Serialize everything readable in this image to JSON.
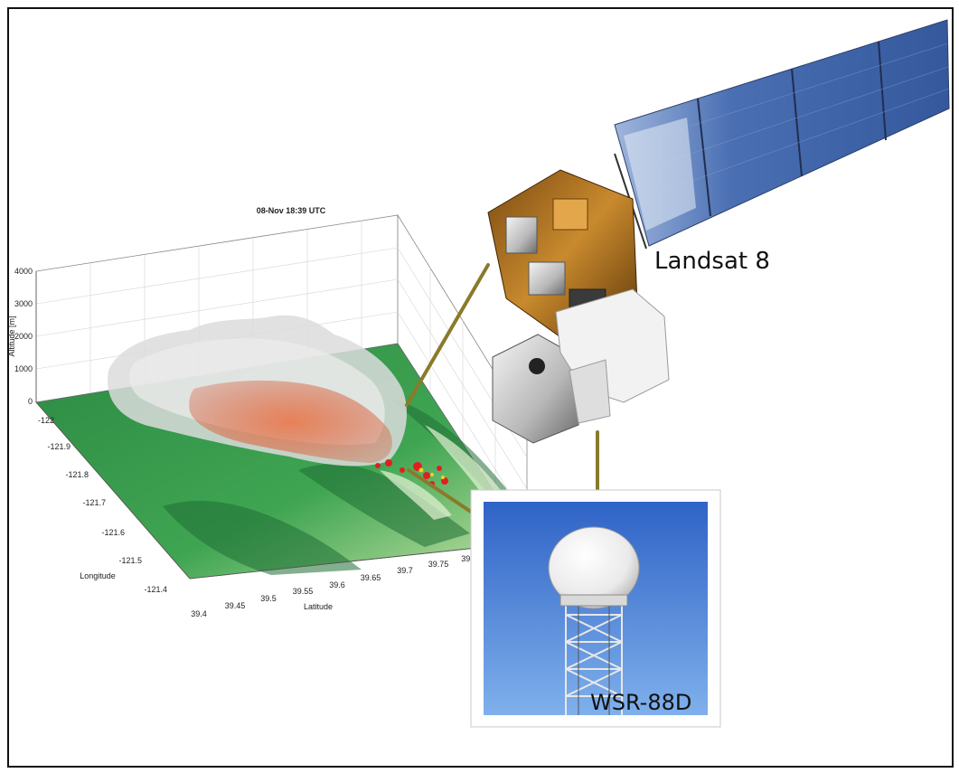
{
  "plot": {
    "title": "08-Nov 18:39 UTC",
    "z_label": "Altitude [m]",
    "z_ticks": [
      "4000",
      "3000",
      "2000",
      "1000",
      "0"
    ],
    "lon_label": "Longitude",
    "lon_ticks": [
      "-122",
      "-121.9",
      "-121.8",
      "-121.7",
      "-121.6",
      "-121.5",
      "-121.4"
    ],
    "lat_label": "Latitude",
    "lat_ticks": [
      "39.4",
      "39.45",
      "39.5",
      "39.55",
      "39.6",
      "39.65",
      "39.7",
      "39.75",
      "39.8"
    ]
  },
  "labels": {
    "satellite": "Landsat 8",
    "radar": "WSR-88D"
  },
  "colors": {
    "terrain": "#2f9a4a",
    "smoke": "#d8d8d8",
    "fire": "#d9403a",
    "connector": "#8a7a2a",
    "sky": "#3a74d0",
    "solar_panel": "#3d63a8"
  }
}
